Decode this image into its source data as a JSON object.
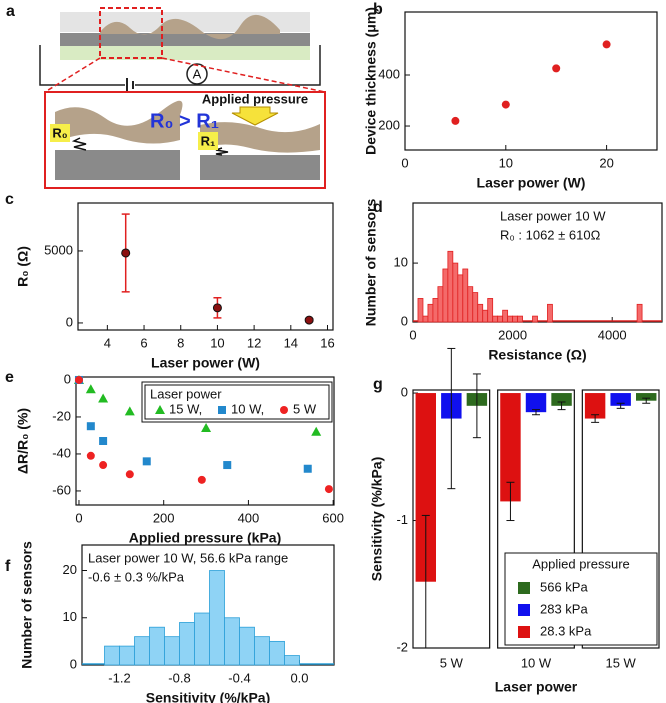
{
  "diagram": {
    "panel": "a",
    "meter": "A",
    "pressure_label": "Applied pressure",
    "ratio": "R₀ > R₁",
    "r0": "R₀",
    "r1": "R₁"
  },
  "chart_data": [
    {
      "type": "scatter",
      "panel": "b",
      "x_label": "Laser power (W)",
      "y_label": "Device thickness (μm)",
      "x": [
        5,
        10,
        15,
        20
      ],
      "values": [
        220,
        284,
        426,
        520
      ],
      "color": "#e02020",
      "marker": "circle",
      "xlim": [
        0,
        25
      ],
      "ylim": [
        106,
        647
      ],
      "xticks": [
        0,
        10,
        20
      ],
      "yticks": [
        200,
        400
      ]
    },
    {
      "type": "scatter",
      "panel": "c",
      "x_label": "Laser power (W)",
      "y_label": "R₀ (Ω)",
      "x": [
        5,
        10,
        15
      ],
      "values": [
        4860,
        1050,
        200
      ],
      "error": [
        2700,
        700,
        100
      ],
      "color": "#8b1010",
      "error_color": "#e02020",
      "marker": "circle",
      "xlim": [
        2.4,
        16.3
      ],
      "ylim": [
        -490,
        8330
      ],
      "xticks": [
        4,
        6,
        8,
        10,
        12,
        14,
        16
      ],
      "yticks": [
        0,
        5000
      ]
    },
    {
      "type": "histogram",
      "panel": "d",
      "x_label": "Resistance (Ω)",
      "y_label": "Number of sensors",
      "annotations": [
        "Laser power 10 W",
        "R₀ : 1062 ± 610Ω"
      ],
      "bins": [
        0,
        100,
        200,
        300,
        400,
        500,
        600,
        700,
        800,
        900,
        1000,
        1100,
        1200,
        1300,
        1400,
        1500,
        1600,
        1700,
        1800,
        1900,
        2000,
        2100,
        2200,
        2300,
        2400,
        2500,
        2600,
        2700,
        2800,
        2900,
        3000,
        3100,
        3200,
        3300,
        3400,
        3500,
        3600,
        3700,
        3800,
        3900,
        4000,
        4100,
        4200,
        4300,
        4400,
        4500,
        4600,
        4700,
        4800,
        4900,
        5000
      ],
      "counts": [
        0,
        4,
        1,
        3,
        4,
        6,
        9,
        12,
        10,
        8,
        9,
        6,
        5,
        3,
        2,
        4,
        1,
        1,
        2,
        1,
        1,
        1,
        0,
        0,
        1,
        0,
        0,
        3,
        0,
        0,
        0,
        0,
        0,
        0,
        0,
        0,
        0,
        0,
        0,
        0,
        0,
        0,
        0,
        0,
        0,
        3,
        0,
        0,
        0,
        0
      ],
      "color": "#f46a6a",
      "edge_color": "#e02020",
      "xlim": [
        0,
        5000
      ],
      "ylim": [
        0,
        20.2
      ],
      "xticks": [
        0,
        2000,
        4000
      ],
      "yticks": [
        0,
        10
      ]
    },
    {
      "type": "scatter",
      "panel": "e",
      "x_label": "Applied pressure (kPa)",
      "y_label": "ΔR/R₀ (%)",
      "legend_title": "Laser power",
      "series": [
        {
          "name": "15 W,",
          "color": "#22bb22",
          "marker": "triangle",
          "x": [
            0,
            28,
            57,
            120,
            300,
            560
          ],
          "values": [
            0,
            -5,
            -10,
            -17,
            -26,
            -28
          ]
        },
        {
          "name": "10 W,",
          "color": "#2288cc",
          "marker": "square",
          "x": [
            0,
            28,
            57,
            160,
            350,
            540
          ],
          "values": [
            0,
            -25,
            -33,
            -44,
            -46,
            -48
          ]
        },
        {
          "name": "5 W",
          "color": "#ee2222",
          "marker": "circle",
          "x": [
            0,
            28,
            57,
            120,
            290,
            590
          ],
          "values": [
            0,
            -41,
            -46,
            -51,
            -54,
            -59
          ]
        }
      ],
      "xlim": [
        -7,
        602
      ],
      "ylim": [
        -67.6,
        1.6
      ],
      "xticks": [
        0,
        200,
        400,
        600
      ],
      "yticks": [
        0,
        -20,
        -40,
        -60
      ]
    },
    {
      "type": "histogram",
      "panel": "f",
      "x_label": "Sensitivity (%/kPa)",
      "y_label": "Number of sensors",
      "annotations": [
        "Laser power 10 W, 56.6 kPa range",
        "-0.6 ± 0.3 %/kPa"
      ],
      "bins": [
        -1.3,
        -1.2,
        -1.1,
        -1.0,
        -0.9,
        -0.8,
        -0.7,
        -0.6,
        -0.5,
        -0.4,
        -0.3,
        -0.2,
        -0.1,
        0.0
      ],
      "counts": [
        4,
        4,
        6,
        8,
        6,
        9,
        11,
        20,
        10,
        8,
        6,
        5,
        2
      ],
      "color": "#8fd3f5",
      "edge_color": "#2a9fd8",
      "xlim": [
        -1.45,
        0.23
      ],
      "ylim": [
        0,
        25.4
      ],
      "xticks": [
        -1.2,
        -0.8,
        -0.4,
        {
          "value": 0,
          "label": "0.0"
        }
      ],
      "yticks": [
        0,
        10,
        20
      ]
    },
    {
      "type": "bar",
      "panel": "g",
      "x_label": "Laser power",
      "y_label": "Sensitivity (%/kPa)",
      "legend_title": "Applied pressure",
      "categories": [
        "5 W",
        "10 W",
        "15 W"
      ],
      "series": [
        {
          "name": "566 kPa",
          "color": "#2d6a1e",
          "values": [
            -0.1,
            -0.1,
            -0.06
          ],
          "error": [
            0.25,
            0.03,
            0.02
          ]
        },
        {
          "name": "283 kPa",
          "color": "#1010ee",
          "values": [
            -0.2,
            -0.15,
            -0.1
          ],
          "error": [
            0.55,
            0.02,
            0.02
          ]
        },
        {
          "name": "28.3 kPa",
          "color": "#dd1111",
          "values": [
            -1.48,
            -0.85,
            -0.2
          ],
          "error": [
            0.52,
            0.15,
            0.03
          ]
        }
      ],
      "ylim": [
        -2,
        0.024
      ],
      "yticks": [
        0,
        -1,
        -2
      ]
    }
  ]
}
